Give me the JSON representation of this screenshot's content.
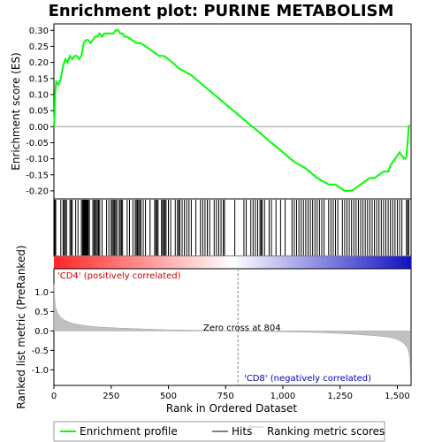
{
  "chart_data": {
    "type": "line",
    "title": "Enrichment plot: PURINE METABOLISM",
    "xlabel": "Rank in Ordered Dataset",
    "x_ticks": [
      0,
      250,
      500,
      750,
      1000,
      1250,
      1500
    ],
    "xlim": [
      0,
      1560
    ],
    "top_panel": {
      "ylabel": "Enrichment score (ES)",
      "ylim": [
        -0.225,
        0.32
      ],
      "y_ticks": [
        0.3,
        0.25,
        0.2,
        0.15,
        0.1,
        0.05,
        0.0,
        -0.05,
        -0.1,
        -0.15,
        -0.2
      ],
      "y_tick_labels": [
        "0.30",
        "0.25",
        "0.20",
        "0.15",
        "0.10",
        "0.05",
        "0.00",
        "-0.05",
        "-0.10",
        "-0.15",
        "-0.20"
      ],
      "series": [
        {
          "name": "Enrichment profile",
          "color": "#00ff00",
          "x": [
            0,
            3,
            5,
            10,
            20,
            30,
            40,
            50,
            60,
            70,
            80,
            90,
            100,
            110,
            120,
            130,
            140,
            150,
            160,
            170,
            180,
            190,
            200,
            210,
            220,
            230,
            240,
            250,
            260,
            270,
            280,
            290,
            300,
            310,
            320,
            340,
            360,
            380,
            400,
            420,
            440,
            460,
            480,
            500,
            550,
            600,
            650,
            700,
            750,
            800,
            850,
            900,
            950,
            1000,
            1050,
            1100,
            1150,
            1200,
            1230,
            1250,
            1270,
            1290,
            1300,
            1320,
            1340,
            1360,
            1380,
            1400,
            1420,
            1440,
            1460,
            1470,
            1480,
            1490,
            1500,
            1510,
            1520,
            1530,
            1535,
            1540,
            1545,
            1550,
            1555
          ],
          "y": [
            0.0,
            0.04,
            0.1,
            0.14,
            0.13,
            0.15,
            0.19,
            0.21,
            0.2,
            0.22,
            0.21,
            0.22,
            0.22,
            0.21,
            0.22,
            0.26,
            0.27,
            0.27,
            0.26,
            0.27,
            0.28,
            0.28,
            0.29,
            0.28,
            0.29,
            0.29,
            0.29,
            0.29,
            0.29,
            0.3,
            0.3,
            0.29,
            0.29,
            0.28,
            0.28,
            0.27,
            0.26,
            0.26,
            0.25,
            0.24,
            0.23,
            0.22,
            0.22,
            0.21,
            0.18,
            0.16,
            0.13,
            0.1,
            0.07,
            0.04,
            0.01,
            -0.02,
            -0.05,
            -0.08,
            -0.11,
            -0.13,
            -0.16,
            -0.18,
            -0.18,
            -0.19,
            -0.2,
            -0.2,
            -0.2,
            -0.19,
            -0.18,
            -0.17,
            -0.16,
            -0.16,
            -0.15,
            -0.14,
            -0.14,
            -0.12,
            -0.11,
            -0.1,
            -0.09,
            -0.08,
            -0.09,
            -0.1,
            -0.1,
            -0.09,
            -0.05,
            0.0,
            0.005
          ]
        }
      ]
    },
    "hits_panel": {
      "label": "Hits",
      "hit_positions": [
        3,
        5,
        8,
        30,
        40,
        45,
        50,
        55,
        70,
        75,
        80,
        95,
        105,
        120,
        125,
        128,
        130,
        132,
        135,
        138,
        140,
        142,
        145,
        148,
        150,
        155,
        170,
        175,
        180,
        185,
        190,
        195,
        200,
        210,
        230,
        240,
        250,
        255,
        260,
        265,
        270,
        275,
        285,
        290,
        295,
        300,
        320,
        330,
        345,
        355,
        360,
        365,
        370,
        375,
        380,
        390,
        400,
        420,
        440,
        445,
        450,
        455,
        470,
        475,
        480,
        485,
        490,
        500,
        510,
        530,
        540,
        545,
        550,
        560,
        570,
        580,
        590,
        600,
        620,
        640,
        650,
        660,
        670,
        680,
        700,
        710,
        720,
        730,
        740,
        745,
        790,
        830,
        840,
        860,
        870,
        880,
        890,
        900,
        905,
        910,
        920,
        940,
        950,
        970,
        990,
        1010,
        1040,
        1050,
        1060,
        1070,
        1080,
        1090,
        1100,
        1110,
        1120,
        1130,
        1140,
        1150,
        1160,
        1170,
        1180,
        1200,
        1210,
        1220,
        1230,
        1240,
        1260,
        1270,
        1280,
        1290,
        1300,
        1310,
        1320,
        1330,
        1340,
        1350,
        1360,
        1370,
        1380,
        1390,
        1400,
        1410,
        1420,
        1430,
        1440,
        1450,
        1460,
        1470,
        1480,
        1490,
        1500,
        1510,
        1520,
        1540,
        1545,
        1550
      ]
    },
    "bottom_panel": {
      "ylabel": "Ranked list metric (PreRanked)",
      "ylim": [
        -1.4,
        1.6
      ],
      "y_ticks": [
        1.0,
        0.5,
        0.0,
        -0.5,
        -1.0
      ],
      "y_tick_labels": [
        "1.0",
        "0.5",
        "0.0",
        "-0.5",
        "-1.0"
      ],
      "metric_x": [
        0,
        5,
        10,
        20,
        40,
        60,
        80,
        100,
        150,
        200,
        300,
        400,
        500,
        600,
        700,
        804,
        900,
        1000,
        1100,
        1200,
        1300,
        1350,
        1400,
        1450,
        1480,
        1500,
        1520,
        1530,
        1540,
        1545,
        1550,
        1555,
        1558
      ],
      "metric_y": [
        1.2,
        0.7,
        0.55,
        0.42,
        0.3,
        0.24,
        0.2,
        0.17,
        0.13,
        0.1,
        0.07,
        0.05,
        0.03,
        0.02,
        0.01,
        0.0,
        -0.01,
        -0.02,
        -0.03,
        -0.05,
        -0.08,
        -0.1,
        -0.12,
        -0.15,
        -0.18,
        -0.22,
        -0.28,
        -0.33,
        -0.4,
        -0.45,
        -0.55,
        -0.7,
        -1.27
      ],
      "annotations": {
        "positive": "'CD4' (positively correlated)",
        "negative": "'CD8' (negatively correlated)",
        "zero_cross": "Zero cross at 804"
      },
      "zero_cross": 804
    },
    "legend": {
      "entries": [
        "Enrichment profile",
        "Hits",
        "Ranking metric scores"
      ],
      "position": "bottom"
    },
    "colors": {
      "profile": "#00ff00",
      "hits": "#000000",
      "metric_fill": "#c0c0c0",
      "positive_text": "#cc0000",
      "negative_text": "#0000bb"
    }
  }
}
